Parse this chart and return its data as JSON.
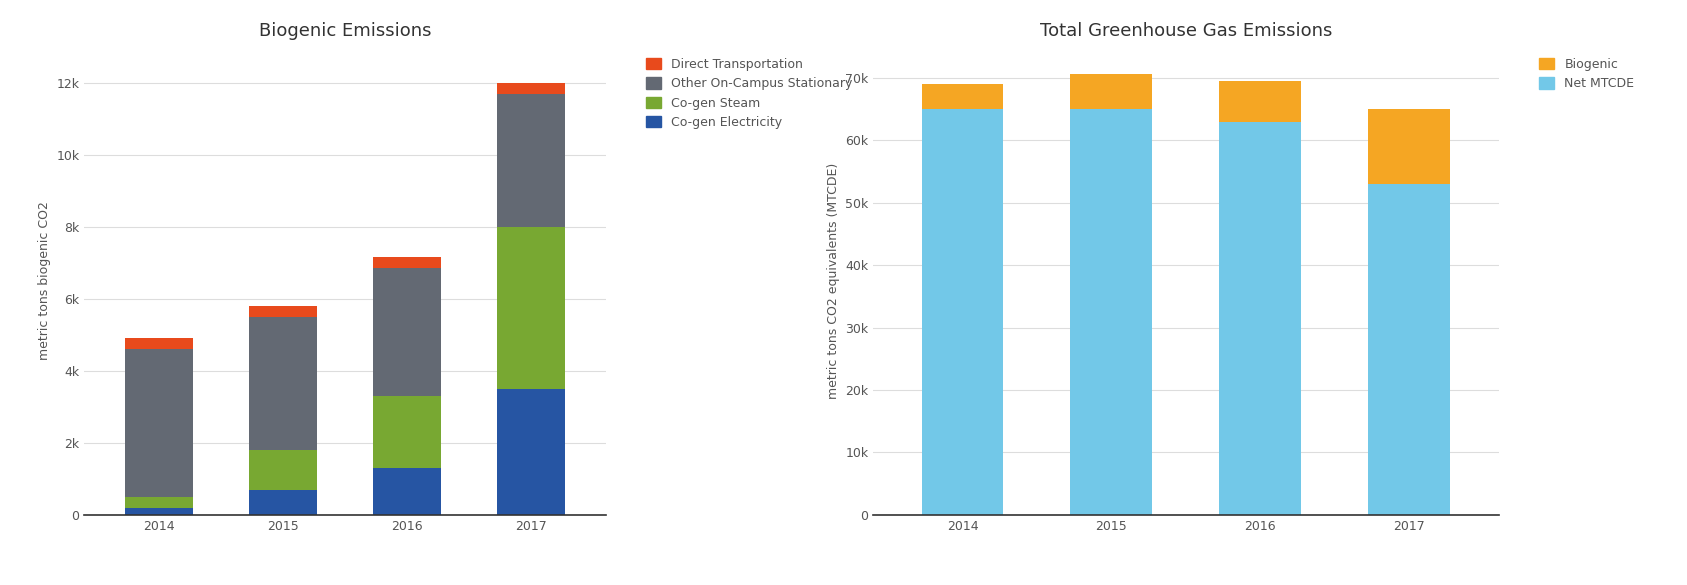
{
  "left_title": "Biogenic Emissions",
  "left_ylabel": "metric tons biogenic CO2",
  "left_categories": [
    "2014",
    "2015",
    "2016",
    "2017"
  ],
  "left_series": {
    "Co-gen Electricity": [
      200,
      700,
      1300,
      3500
    ],
    "Co-gen Steam": [
      300,
      1100,
      2000,
      4500
    ],
    "Other On-Campus Stationary": [
      4100,
      3700,
      3550,
      3700
    ],
    "Direct Transportation": [
      300,
      300,
      300,
      300
    ]
  },
  "left_colors": {
    "Co-gen Electricity": "#2655a3",
    "Co-gen Steam": "#78a832",
    "Other On-Campus Stationary": "#636973",
    "Direct Transportation": "#e84a1c"
  },
  "left_ylim": [
    0,
    13000
  ],
  "left_yticks": [
    0,
    2000,
    4000,
    6000,
    8000,
    10000,
    12000
  ],
  "right_title": "Total Greenhouse Gas Emissions",
  "right_ylabel": "metric tons CO2 equivalents (MTCDE)",
  "right_categories": [
    "2014",
    "2015",
    "2016",
    "2017"
  ],
  "right_series": {
    "Net MTCDE": [
      65000,
      65000,
      63000,
      53000
    ],
    "Biogenic": [
      4000,
      5700,
      6500,
      12000
    ]
  },
  "right_colors": {
    "Net MTCDE": "#72c8e8",
    "Biogenic": "#f5a623"
  },
  "right_ylim": [
    0,
    75000
  ],
  "right_yticks": [
    0,
    10000,
    20000,
    30000,
    40000,
    50000,
    60000,
    70000
  ],
  "background_color": "#ffffff",
  "grid_color": "#dddddd",
  "tick_label_color": "#555555",
  "axis_line_color": "#333333",
  "title_fontsize": 13,
  "label_fontsize": 9,
  "tick_fontsize": 9,
  "legend_fontsize": 9
}
